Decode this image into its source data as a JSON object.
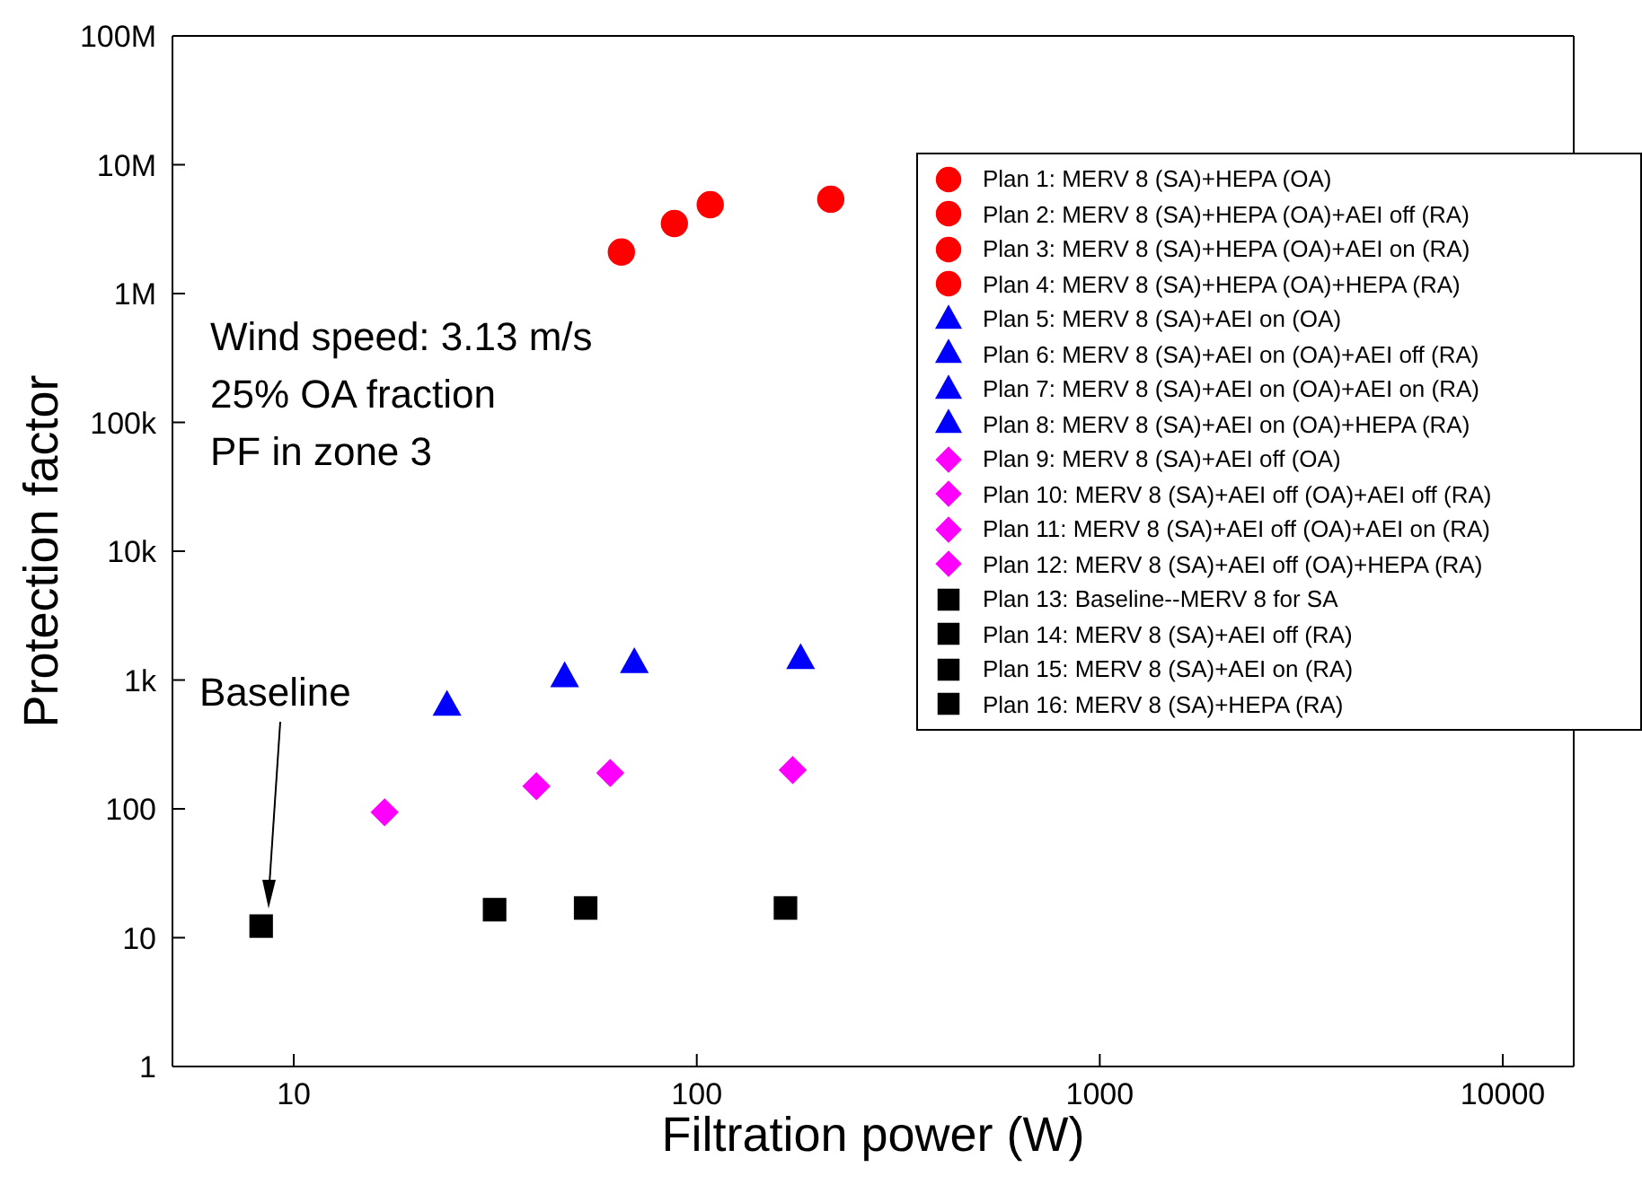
{
  "chart_data": {
    "type": "scatter",
    "xlabel": "Filtration power (W)",
    "ylabel": "Protection factor",
    "log": "xy",
    "grid": false,
    "legend": "top right",
    "xlim": [
      5,
      15000
    ],
    "xticks": [
      10,
      100,
      1000,
      10000
    ],
    "ylim": [
      1,
      100000000
    ],
    "yticks": [
      1,
      10,
      100,
      {
        "value": 1000,
        "label": "1k"
      },
      {
        "value": 10000,
        "label": "10k"
      },
      {
        "value": 100000,
        "label": "100k"
      },
      {
        "value": 1000000,
        "label": "1M"
      },
      {
        "value": 10000000,
        "label": "10M"
      },
      {
        "value": 100000000,
        "label": "100M"
      }
    ],
    "annotations": [
      "Wind speed: 3.13 m/s",
      "25% OA fraction",
      "PF in zone 3",
      "Baseline"
    ],
    "series": [
      {
        "name": "Plan 1: MERV 8 (SA)+HEPA (OA)",
        "color": "#ff0000",
        "marker": "circle",
        "x": [
          65
        ],
        "values": [
          2100000
        ]
      },
      {
        "name": "Plan 2: MERV 8 (SA)+HEPA (OA)+AEI off (RA)",
        "color": "#ff0000",
        "marker": "circle",
        "x": [
          88
        ],
        "values": [
          3500000
        ]
      },
      {
        "name": "Plan 3: MERV 8 (SA)+HEPA (OA)+AEI on (RA)",
        "color": "#ff0000",
        "marker": "circle",
        "x": [
          108
        ],
        "values": [
          4900000
        ]
      },
      {
        "name": "Plan 4: MERV 8 (SA)+HEPA (OA)+HEPA (RA)",
        "color": "#ff0000",
        "marker": "circle",
        "x": [
          215
        ],
        "values": [
          5400000
        ]
      },
      {
        "name": "Plan 5: MERV 8 (SA)+AEI on (OA)",
        "color": "#0000ff",
        "marker": "triangle",
        "x": [
          24
        ],
        "values": [
          630
        ]
      },
      {
        "name": "Plan 6: MERV 8 (SA)+AEI on (OA)+AEI off (RA)",
        "color": "#0000ff",
        "marker": "triangle",
        "x": [
          47
        ],
        "values": [
          1050
        ]
      },
      {
        "name": "Plan 7: MERV 8 (SA)+AEI on (OA)+AEI on (RA)",
        "color": "#0000ff",
        "marker": "triangle",
        "x": [
          70
        ],
        "values": [
          1350
        ]
      },
      {
        "name": "Plan 8: MERV 8 (SA)+AEI on (OA)+HEPA (RA)",
        "color": "#0000ff",
        "marker": "triangle",
        "x": [
          181
        ],
        "values": [
          1450
        ]
      },
      {
        "name": "Plan 9: MERV 8 (SA)+AEI off (OA)",
        "color": "#ff00ff",
        "marker": "diamond",
        "x": [
          16.8
        ],
        "values": [
          94
        ]
      },
      {
        "name": "Plan 10: MERV 8 (SA)+AEI off (OA)+AEI off (RA)",
        "color": "#ff00ff",
        "marker": "diamond",
        "x": [
          40
        ],
        "values": [
          150
        ]
      },
      {
        "name": "Plan 11: MERV 8 (SA)+AEI off (OA)+AEI on (RA)",
        "color": "#ff00ff",
        "marker": "diamond",
        "x": [
          61
        ],
        "values": [
          190
        ]
      },
      {
        "name": "Plan 12: MERV 8 (SA)+AEI off (OA)+HEPA (RA)",
        "color": "#ff00ff",
        "marker": "diamond",
        "x": [
          173
        ],
        "values": [
          200
        ]
      },
      {
        "name": "Plan 13: Baseline--MERV 8 for SA",
        "color": "#000000",
        "marker": "square",
        "x": [
          8.3
        ],
        "values": [
          12.3
        ]
      },
      {
        "name": "Plan 14: MERV 8 (SA)+AEI off (RA)",
        "color": "#000000",
        "marker": "square",
        "x": [
          31.5
        ],
        "values": [
          16.5
        ]
      },
      {
        "name": "Plan 15: MERV 8 (SA)+AEI on (RA)",
        "color": "#000000",
        "marker": "square",
        "x": [
          53
        ],
        "values": [
          17
        ]
      },
      {
        "name": "Plan 16: MERV 8 (SA)+HEPA (RA)",
        "color": "#000000",
        "marker": "square",
        "x": [
          166
        ],
        "values": [
          17
        ]
      }
    ]
  }
}
